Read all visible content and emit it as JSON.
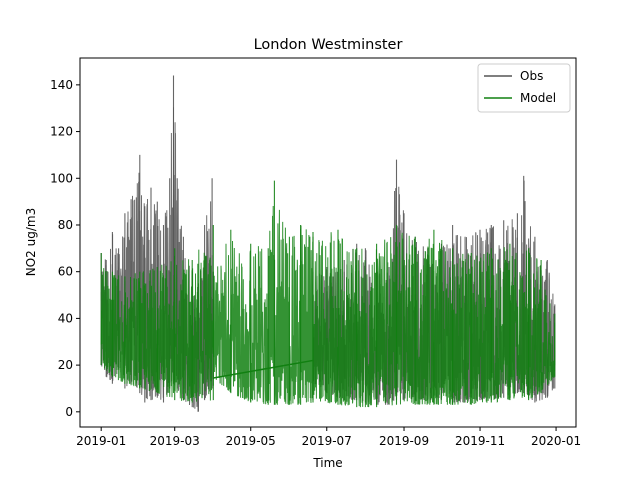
{
  "chart_data": {
    "type": "line",
    "title": "London Westminster",
    "xlabel": "Time",
    "ylabel": "NO2 ug/m3",
    "xlim": [
      "2018-12-15",
      "2020-01-17"
    ],
    "ylim": [
      -6.5,
      151.5
    ],
    "x_ticks": [
      "2019-01",
      "2019-03",
      "2019-05",
      "2019-07",
      "2019-09",
      "2019-11",
      "2020-01"
    ],
    "y_ticks": [
      0,
      20,
      40,
      60,
      80,
      100,
      120,
      140
    ],
    "grid": false,
    "legend_position": "top-right",
    "resolution": "hourly",
    "series": [
      {
        "name": "Obs",
        "color": "#555555",
        "segments": [
          {
            "start": "2019-01-01",
            "end": "2019-12-31",
            "envelope": [
              [
                "2019-01-01",
                20,
                68
              ],
              [
                "2019-01-05",
                15,
                65
              ],
              [
                "2019-01-10",
                12,
                77
              ],
              [
                "2019-01-15",
                18,
                70
              ],
              [
                "2019-01-20",
                10,
                85
              ],
              [
                "2019-01-25",
                12,
                91
              ],
              [
                "2019-02-01",
                8,
                110
              ],
              [
                "2019-02-05",
                4,
                88
              ],
              [
                "2019-02-10",
                5,
                96
              ],
              [
                "2019-02-15",
                6,
                90
              ],
              [
                "2019-02-20",
                4,
                80
              ],
              [
                "2019-02-25",
                10,
                100
              ],
              [
                "2019-02-28",
                12,
                144
              ],
              [
                "2019-03-03",
                10,
                100
              ],
              [
                "2019-03-08",
                5,
                75
              ],
              [
                "2019-03-15",
                2,
                60
              ],
              [
                "2019-03-20",
                0,
                55
              ],
              [
                "2019-03-25",
                5,
                80
              ],
              [
                "2019-03-31",
                10,
                100
              ]
            ]
          },
          {
            "start": "2019-06-20",
            "end": "2019-12-31",
            "envelope": [
              [
                "2019-06-20",
                12,
                60
              ],
              [
                "2019-07-01",
                8,
                62
              ],
              [
                "2019-07-15",
                5,
                65
              ],
              [
                "2019-07-25",
                5,
                72
              ],
              [
                "2019-08-01",
                4,
                70
              ],
              [
                "2019-08-10",
                3,
                60
              ],
              [
                "2019-08-20",
                3,
                62
              ],
              [
                "2019-08-26",
                5,
                108
              ],
              [
                "2019-09-01",
                5,
                85
              ],
              [
                "2019-09-10",
                5,
                75
              ],
              [
                "2019-09-20",
                5,
                70
              ],
              [
                "2019-10-01",
                5,
                72
              ],
              [
                "2019-10-10",
                4,
                80
              ],
              [
                "2019-10-20",
                4,
                75
              ],
              [
                "2019-11-01",
                5,
                78
              ],
              [
                "2019-11-10",
                5,
                80
              ],
              [
                "2019-11-20",
                6,
                82
              ],
              [
                "2019-12-01",
                8,
                85
              ],
              [
                "2019-12-06",
                8,
                101
              ],
              [
                "2019-12-15",
                4,
                75
              ],
              [
                "2019-12-25",
                6,
                65
              ],
              [
                "2019-12-31",
                10,
                46
              ]
            ]
          }
        ]
      },
      {
        "name": "Model",
        "color": "#118011",
        "segments": [
          {
            "start": "2019-01-01",
            "end": "2019-04-01",
            "envelope": [
              [
                "2019-01-01",
                20,
                68
              ],
              [
                "2019-01-10",
                15,
                60
              ],
              [
                "2019-01-20",
                12,
                58
              ],
              [
                "2019-02-01",
                10,
                60
              ],
              [
                "2019-02-15",
                8,
                62
              ],
              [
                "2019-03-01",
                5,
                70
              ],
              [
                "2019-03-15",
                4,
                65
              ],
              [
                "2019-04-01",
                5,
                80
              ]
            ]
          },
          {
            "start": "2019-04-01",
            "end": "2019-06-20",
            "envelope": [
              [
                "2019-04-01",
                14,
                60
              ],
              [
                "2019-04-15",
                8,
                78
              ],
              [
                "2019-05-01",
                4,
                72
              ],
              [
                "2019-05-15",
                3,
                70
              ],
              [
                "2019-05-20",
                3,
                99
              ],
              [
                "2019-06-01",
                3,
                75
              ],
              [
                "2019-06-10",
                3,
                80
              ],
              [
                "2019-06-20",
                4,
                77
              ]
            ]
          },
          {
            "start": "2019-06-20",
            "end": "2019-12-31",
            "envelope": [
              [
                "2019-06-20",
                5,
                75
              ],
              [
                "2019-07-10",
                3,
                78
              ],
              [
                "2019-07-25",
                2,
                70
              ],
              [
                "2019-08-10",
                2,
                72
              ],
              [
                "2019-08-26",
                3,
                80
              ],
              [
                "2019-09-10",
                3,
                75
              ],
              [
                "2019-09-25",
                3,
                78
              ],
              [
                "2019-10-10",
                3,
                70
              ],
              [
                "2019-10-25",
                3,
                68
              ],
              [
                "2019-11-10",
                4,
                70
              ],
              [
                "2019-11-25",
                5,
                72
              ],
              [
                "2019-12-10",
                5,
                70
              ],
              [
                "2019-12-20",
                8,
                65
              ],
              [
                "2019-12-31",
                15,
                42
              ]
            ]
          }
        ],
        "gap_connector": [
          [
            "2019-04-01",
            14.5
          ],
          [
            "2019-06-20",
            22
          ]
        ]
      }
    ]
  }
}
